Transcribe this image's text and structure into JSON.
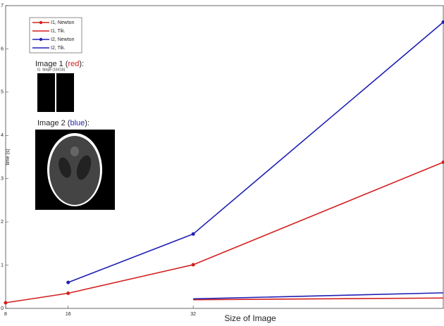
{
  "chart_data": {
    "type": "line",
    "x_label": "Size of Image",
    "y_label": "time (s)",
    "x": [
      8,
      16,
      32,
      64
    ],
    "xlim": [
      8,
      64
    ],
    "xticks": [
      8,
      16,
      32
    ],
    "ylim": [
      0,
      7
    ],
    "yticks": [
      0,
      1,
      2,
      3,
      4,
      5,
      6,
      7
    ],
    "legend": "upper left",
    "series": [
      {
        "name": "I1, Newton",
        "color": "#d42020",
        "marker": true,
        "values": [
          0.13,
          0.35,
          1.01,
          3.38
        ]
      },
      {
        "name": "I1, Tik.",
        "color": "#d42020",
        "marker": false,
        "values": [
          null,
          null,
          0.2,
          0.24
        ]
      },
      {
        "name": "I2, Newton",
        "color": "#1f1fb4",
        "marker": true,
        "values": [
          null,
          0.6,
          1.72,
          6.62
        ]
      },
      {
        "name": "I2, Tik.",
        "color": "#1f1fb4",
        "marker": false,
        "values": [
          null,
          null,
          0.22,
          0.36
        ]
      }
    ],
    "annotations": {
      "image1": {
        "label": [
          "Image 1 (",
          "red",
          "):"
        ],
        "caption": "I1: Stripe (16X16)"
      },
      "image2": {
        "label": [
          "Image 2 (",
          "blue",
          "):"
        ]
      }
    }
  }
}
